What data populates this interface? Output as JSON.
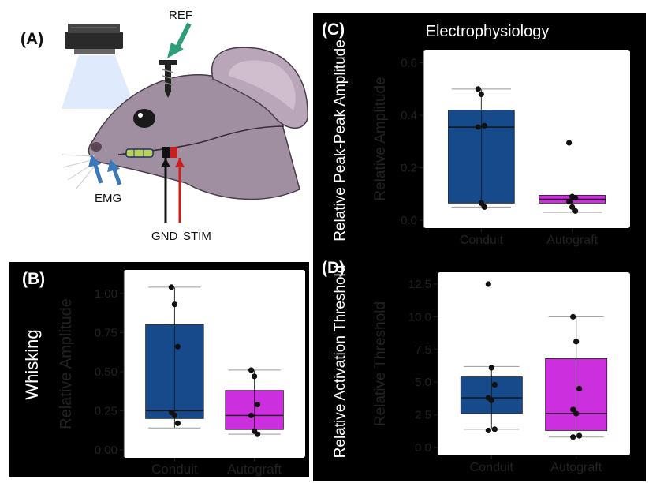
{
  "panel_labels": {
    "a": "(A)",
    "b": "(B)",
    "c": "(C)",
    "d": "(D)"
  },
  "diagram": {
    "ref_label": "REF",
    "emg_label": "EMG",
    "gnd_label": "GND",
    "stim_label": "STIM"
  },
  "colors": {
    "conduit": "#174a8b",
    "autograft": "#cc2fdd",
    "panel_bg": "#000000",
    "plot_bg": "#ffffff",
    "ref_arrow": "#2f9e78",
    "emg_arrow": "#3a78b8",
    "stim_wire": "#c8201e",
    "mouse_body": "#9e8f9e"
  },
  "chart_data": [
    {
      "id": "B",
      "type": "box",
      "title": "",
      "side_title": "Whisking",
      "ylabel": "Relative Amplitude",
      "xlabel": "",
      "categories": [
        "Conduit",
        "Autograft"
      ],
      "ylim": [
        0,
        1.1
      ],
      "yticks": [
        "0.00",
        "0.25",
        "0.50",
        "0.75",
        "1.00"
      ],
      "ytick_values": [
        0,
        0.25,
        0.5,
        0.75,
        1.0
      ],
      "series": [
        {
          "name": "Conduit",
          "min": 0.14,
          "q1": 0.2,
          "median": 0.25,
          "q3": 0.8,
          "max": 1.04,
          "points": [
            1.04,
            0.93,
            0.66,
            0.24,
            0.22,
            0.17
          ]
        },
        {
          "name": "Autograft",
          "min": 0.1,
          "q1": 0.13,
          "median": 0.22,
          "q3": 0.38,
          "max": 0.51,
          "points": [
            0.51,
            0.47,
            0.29,
            0.22,
            0.12,
            0.1
          ]
        }
      ]
    },
    {
      "id": "C",
      "type": "box",
      "title": "Electrophysiology",
      "side_title": "Relative Peak-Peak Amplitude",
      "ylabel": "Relative Amplitude",
      "xlabel": "",
      "categories": [
        "Conduit",
        "Autograft"
      ],
      "ylim": [
        0,
        0.62
      ],
      "yticks": [
        "0.0",
        "0.2",
        "0.4",
        "0.6"
      ],
      "ytick_values": [
        0,
        0.2,
        0.4,
        0.6
      ],
      "series": [
        {
          "name": "Conduit",
          "min": 0.05,
          "q1": 0.065,
          "median": 0.355,
          "q3": 0.42,
          "max": 0.5,
          "points": [
            0.5,
            0.48,
            0.36,
            0.355,
            0.065,
            0.05
          ]
        },
        {
          "name": "Autograft",
          "min": 0.03,
          "q1": 0.065,
          "median": 0.08,
          "q3": 0.095,
          "max": 0.095,
          "points": [
            0.295,
            0.09,
            0.085,
            0.07,
            0.05,
            0.035
          ]
        }
      ]
    },
    {
      "id": "D",
      "type": "box",
      "title": "",
      "side_title": "Relative Activation Threshold",
      "ylabel": "Relative Threshold",
      "xlabel": "",
      "categories": [
        "Conduit",
        "Autograft"
      ],
      "ylim": [
        0,
        12.8
      ],
      "yticks": [
        "0.0",
        "2.5",
        "5.0",
        "7.5",
        "10.0",
        "12.5"
      ],
      "ytick_values": [
        0,
        2.5,
        5,
        7.5,
        10,
        12.5
      ],
      "series": [
        {
          "name": "Conduit",
          "min": 1.4,
          "q1": 2.6,
          "median": 3.8,
          "q3": 5.4,
          "max": 6.2,
          "points": [
            12.5,
            6.1,
            4.8,
            3.8,
            3.6,
            1.4,
            1.3
          ]
        },
        {
          "name": "Autograft",
          "min": 0.8,
          "q1": 1.3,
          "median": 2.6,
          "q3": 6.8,
          "max": 10.0,
          "points": [
            10.0,
            8.1,
            4.5,
            2.9,
            2.6,
            0.9,
            0.8
          ]
        }
      ]
    }
  ]
}
